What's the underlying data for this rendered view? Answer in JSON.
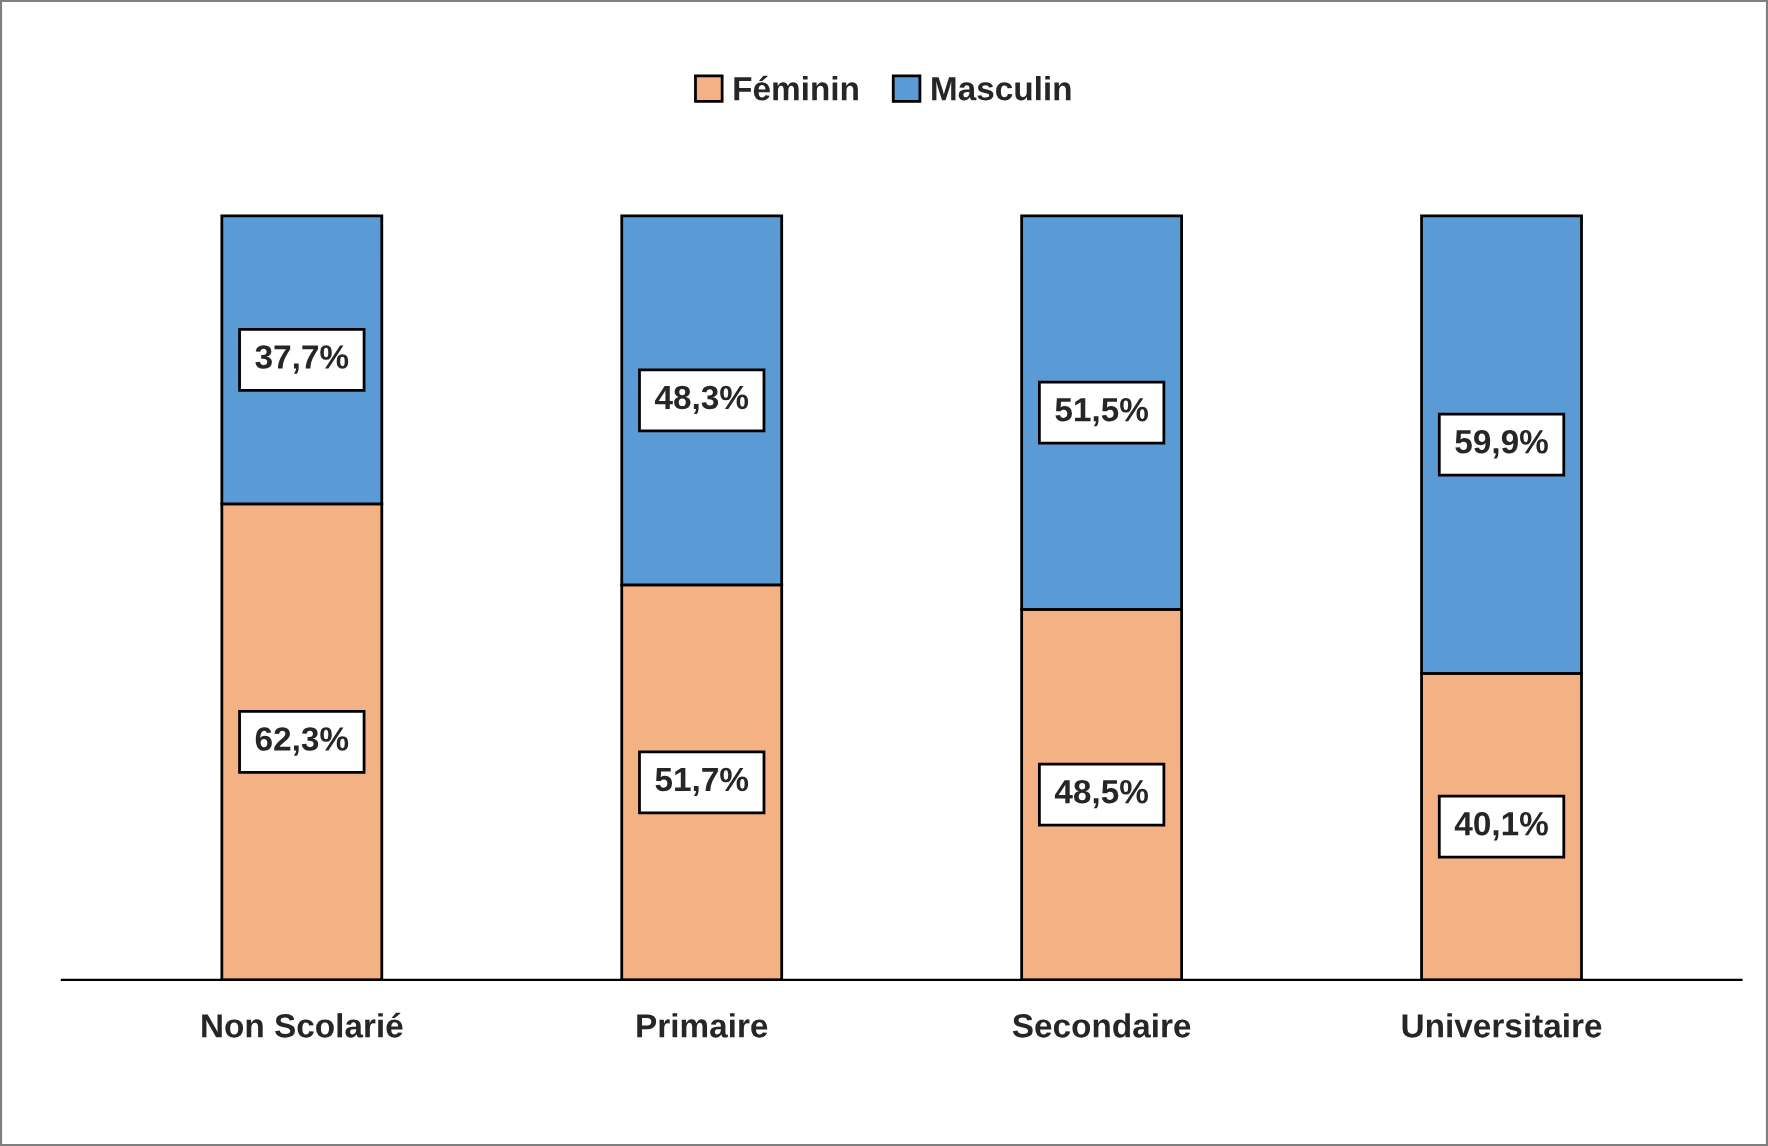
{
  "chart_data": {
    "type": "bar",
    "stacked": true,
    "legend": "top",
    "categories": [
      "Non Scolarié",
      "Primaire",
      "Secondaire",
      "Universitaire"
    ],
    "series": [
      {
        "name": "Féminin",
        "color": "#f4b183",
        "values": [
          62.3,
          51.7,
          48.5,
          40.1
        ],
        "value_labels": [
          "62,3%",
          "51,7%",
          "48,5%",
          "40,1%"
        ]
      },
      {
        "name": "Masculin",
        "color": "#5b9bd5",
        "values": [
          37.7,
          48.3,
          51.5,
          59.9
        ],
        "value_labels": [
          "37,7%",
          "48,3%",
          "51,5%",
          "59,9%"
        ]
      }
    ]
  }
}
